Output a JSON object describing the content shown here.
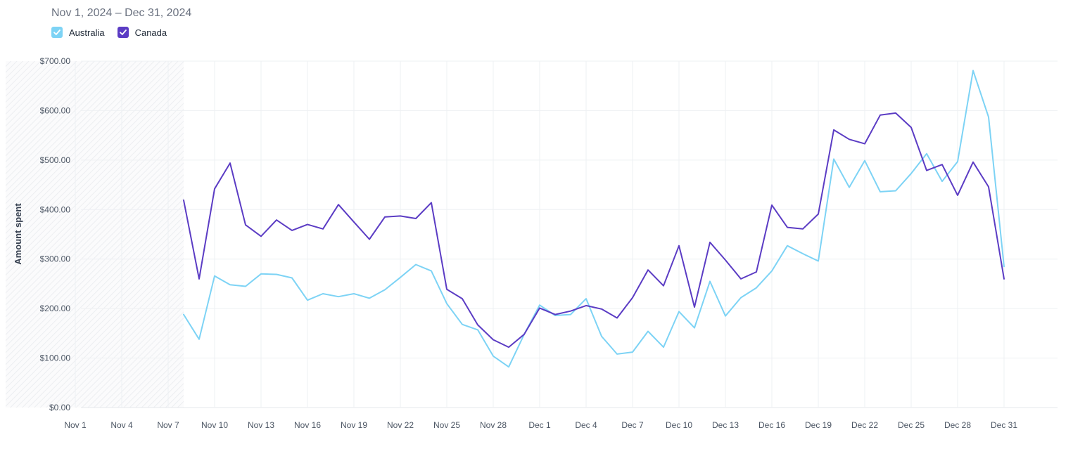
{
  "header": {
    "date_range": "Nov 1, 2024 – Dec 31, 2024"
  },
  "colors": {
    "australia": "#7dd3f5",
    "canada": "#5b3cc4",
    "grid": "#eef0f3"
  },
  "chart_data": {
    "type": "line",
    "ylabel": "Amount spent",
    "xlabel": "",
    "ylim": [
      0,
      700
    ],
    "y_ticks": [
      "$0.00",
      "$100.00",
      "$200.00",
      "$300.00",
      "$400.00",
      "$500.00",
      "$600.00",
      "$700.00"
    ],
    "x_tick_labels": [
      "Nov 1",
      "Nov 4",
      "Nov 7",
      "Nov 10",
      "Nov 13",
      "Nov 16",
      "Nov 19",
      "Nov 22",
      "Nov 25",
      "Nov 28",
      "Dec 1",
      "Dec 4",
      "Dec 7",
      "Dec 10",
      "Dec 13",
      "Dec 16",
      "Dec 19",
      "Dec 22",
      "Dec 25",
      "Dec 28",
      "Dec 31"
    ],
    "x": [
      "Nov 1",
      "Nov 2",
      "Nov 3",
      "Nov 4",
      "Nov 5",
      "Nov 6",
      "Nov 7",
      "Nov 8",
      "Nov 9",
      "Nov 10",
      "Nov 11",
      "Nov 12",
      "Nov 13",
      "Nov 14",
      "Nov 15",
      "Nov 16",
      "Nov 17",
      "Nov 18",
      "Nov 19",
      "Nov 20",
      "Nov 21",
      "Nov 22",
      "Nov 23",
      "Nov 24",
      "Nov 25",
      "Nov 26",
      "Nov 27",
      "Nov 28",
      "Nov 29",
      "Nov 30",
      "Dec 1",
      "Dec 2",
      "Dec 3",
      "Dec 4",
      "Dec 5",
      "Dec 6",
      "Dec 7",
      "Dec 8",
      "Dec 9",
      "Dec 10",
      "Dec 11",
      "Dec 12",
      "Dec 13",
      "Dec 14",
      "Dec 15",
      "Dec 16",
      "Dec 17",
      "Dec 18",
      "Dec 19",
      "Dec 20",
      "Dec 21",
      "Dec 22",
      "Dec 23",
      "Dec 24",
      "Dec 25",
      "Dec 26",
      "Dec 27",
      "Dec 28",
      "Dec 29",
      "Dec 30",
      "Dec 31"
    ],
    "no_data_range": [
      "Nov 1",
      "Nov 8"
    ],
    "grid": true,
    "legend_placement": "top-left",
    "series": [
      {
        "name": "Australia",
        "color": "#7dd3f5",
        "values": [
          null,
          null,
          null,
          null,
          null,
          null,
          null,
          188,
          138,
          266,
          248,
          245,
          270,
          269,
          262,
          217,
          230,
          224,
          230,
          221,
          238,
          263,
          289,
          276,
          210,
          168,
          157,
          104,
          82,
          148,
          207,
          186,
          188,
          220,
          144,
          108,
          112,
          154,
          122,
          194,
          161,
          255,
          185,
          222,
          242,
          276,
          327,
          311,
          296,
          502,
          445,
          499,
          436,
          438,
          473,
          513,
          457,
          497,
          681,
          587,
          285
        ]
      },
      {
        "name": "Canada",
        "color": "#5b3cc4",
        "values": [
          null,
          null,
          null,
          null,
          null,
          null,
          null,
          419,
          260,
          442,
          494,
          369,
          346,
          379,
          358,
          370,
          361,
          410,
          375,
          340,
          385,
          387,
          382,
          414,
          239,
          220,
          167,
          137,
          122,
          148,
          201,
          188,
          195,
          206,
          199,
          181,
          222,
          278,
          246,
          327,
          203,
          334,
          298,
          260,
          274,
          409,
          364,
          361,
          391,
          561,
          542,
          533,
          591,
          595,
          566,
          479,
          491,
          429,
          496,
          446,
          260
        ]
      }
    ]
  }
}
